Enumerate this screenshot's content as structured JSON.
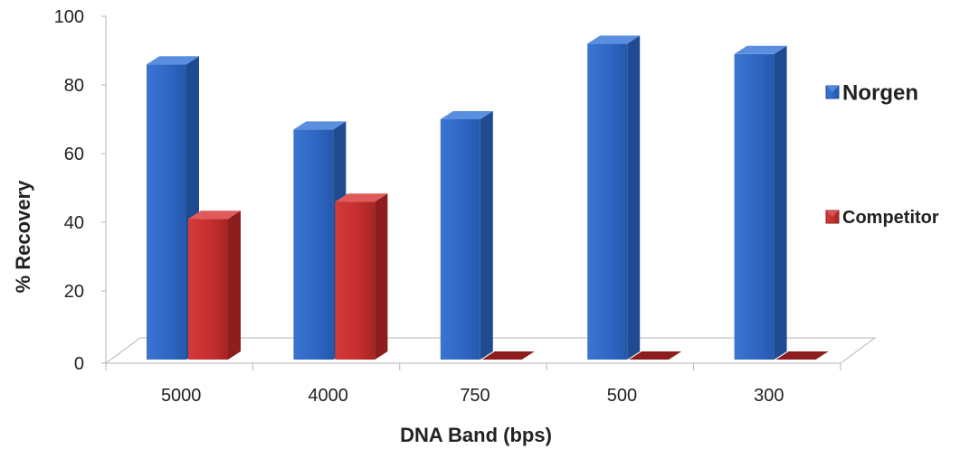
{
  "chart_data": {
    "type": "bar",
    "categories": [
      "5000",
      "4000",
      "750",
      "500",
      "300"
    ],
    "series": [
      {
        "name": "Norgen",
        "values": [
          86,
          67,
          70,
          92,
          89
        ],
        "color": "#2f67c4"
      },
      {
        "name": "Competitor",
        "values": [
          41,
          46,
          0,
          0,
          0
        ],
        "color": "#c62f2f"
      }
    ],
    "title": "",
    "xlabel": "DNA Band (bps)",
    "ylabel": "% Recovery",
    "ylim": [
      0,
      100
    ],
    "yticks": [
      "0",
      "20",
      "40",
      "60",
      "80",
      "100"
    ],
    "grid": false,
    "legend": "right",
    "style": "3d-column"
  }
}
